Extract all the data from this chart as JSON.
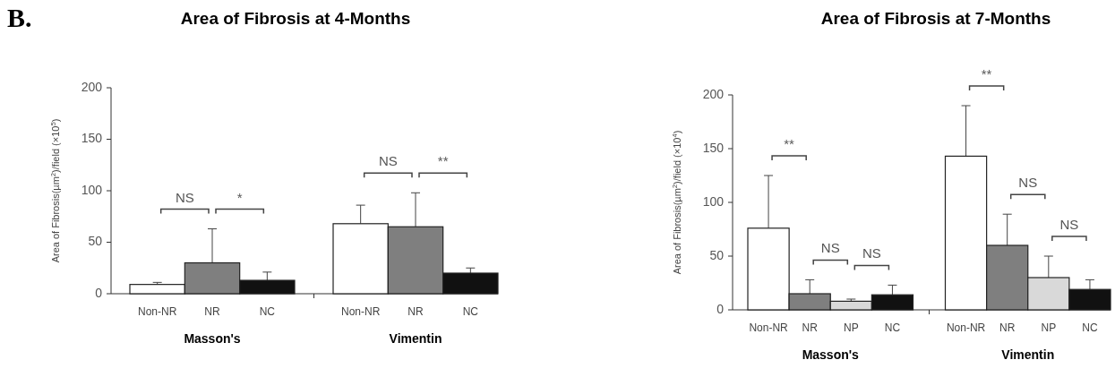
{
  "chart_data": [
    {
      "type": "bar",
      "title": "Area of Fibrosis at 4-Months",
      "ylabel": "Area of Fibrosis(µm$^{2}$)/field (×10$^{5}$)",
      "categories": [
        "Non-NR",
        "NR",
        "NC",
        "Non-NR",
        "NR",
        "NC"
      ],
      "values": [
        9,
        30,
        13,
        68,
        65,
        20
      ],
      "colors": [
        "#ffffff",
        "#7f7f7f",
        "#111111",
        "#ffffff",
        "#7f7f7f",
        "#111111"
      ],
      "errors": [
        [
          9,
          11
        ],
        [
          30,
          63
        ],
        [
          13,
          21
        ],
        [
          68,
          86
        ],
        [
          65,
          98
        ],
        [
          20,
          25
        ]
      ],
      "ylim": [
        0,
        200
      ],
      "yticks": [
        0,
        50,
        100,
        150,
        200
      ],
      "grid": false,
      "annotations": [
        "B.",
        "Masson's",
        "Vimentin",
        "NS",
        "*",
        "NS",
        "**"
      ]
    },
    {
      "type": "bar",
      "title": "Area of Fibrosis at 7-Months",
      "ylabel": "Area of Fibrosis(µm$^{2}$)/field (×10$^{4}$)",
      "categories": [
        "Non-NR",
        "NR",
        "NP",
        "NC",
        "Non-NR",
        "NR",
        "NP",
        "NC"
      ],
      "values": [
        76,
        15,
        8,
        14,
        143,
        60,
        30,
        19
      ],
      "colors": [
        "#ffffff",
        "#7f7f7f",
        "#d9d9d9",
        "#111111",
        "#ffffff",
        "#7f7f7f",
        "#d9d9d9",
        "#111111"
      ],
      "errors": [
        [
          76,
          125
        ],
        [
          15,
          28
        ],
        [
          8,
          10
        ],
        [
          14,
          23
        ],
        [
          143,
          190
        ],
        [
          60,
          89
        ],
        [
          30,
          50
        ],
        [
          19,
          28
        ]
      ],
      "ylim": [
        0,
        200
      ],
      "yticks": [
        0,
        50,
        100,
        150,
        200
      ],
      "grid": false,
      "annotations": [
        "Masson's",
        "Vimentin",
        "**",
        "NS",
        "NS",
        "**",
        "NS",
        "NS"
      ]
    }
  ]
}
